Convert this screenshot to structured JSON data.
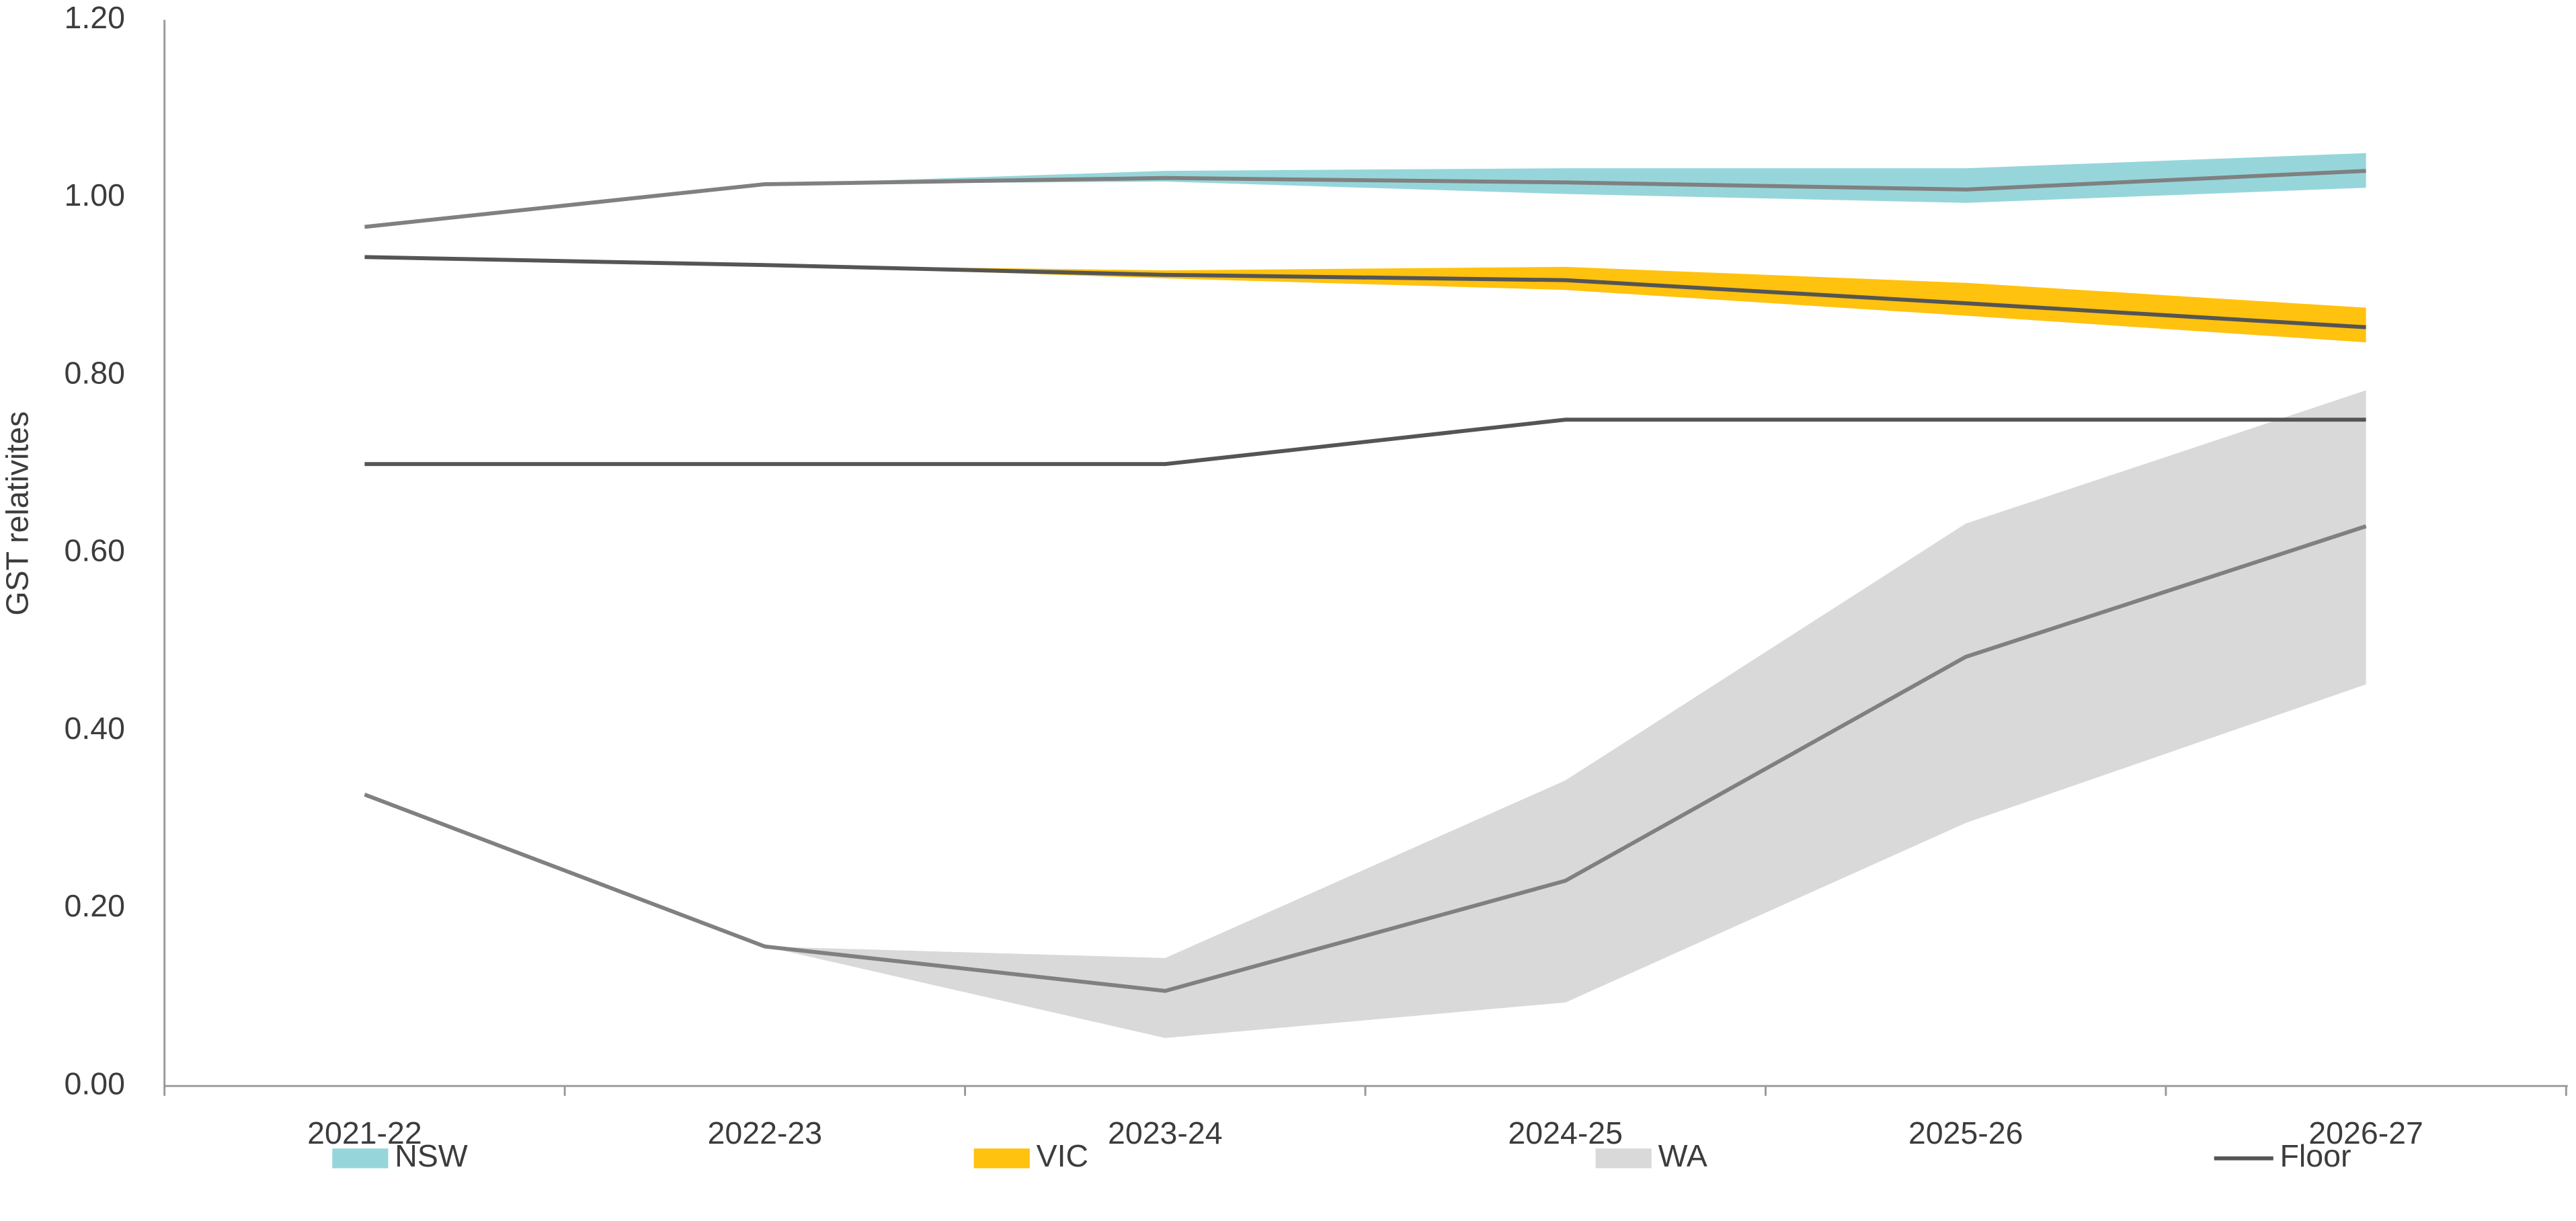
{
  "chart_data": {
    "type": "line",
    "y_label": "GST relativites",
    "categories": [
      "2021-22",
      "2022-23",
      "2023-24",
      "2024-25",
      "2025-26",
      "2026-27"
    ],
    "ylim": [
      0,
      1.2
    ],
    "yticks": [
      {
        "value": 0,
        "label": "0.00"
      },
      {
        "value": 0.2,
        "label": "0.20"
      },
      {
        "value": 0.4,
        "label": "0.40"
      },
      {
        "value": 0.6,
        "label": "0.60"
      },
      {
        "value": 0.8,
        "label": "0.80"
      },
      {
        "value": 1,
        "label": "1.00"
      },
      {
        "value": 1.2,
        "label": "1.20"
      }
    ],
    "series": [
      {
        "name": "NSW",
        "color": "#96d6da",
        "line_color": "#808080",
        "values": [
          0.967,
          1.015,
          1.022,
          1.017,
          1.009,
          1.03
        ],
        "lower": [
          null,
          1.015,
          1.018,
          1.004,
          0.994,
          1.011
        ],
        "upper": [
          null,
          1.015,
          1.03,
          1.033,
          1.033,
          1.05
        ]
      },
      {
        "name": "VIC",
        "color": "#ffc20e",
        "line_color": "#555555",
        "values": [
          0.933,
          0.924,
          0.913,
          0.907,
          0.881,
          0.854
        ],
        "lower": [
          null,
          0.924,
          0.909,
          0.896,
          0.867,
          0.837
        ],
        "upper": [
          null,
          0.924,
          0.918,
          0.922,
          0.904,
          0.876
        ]
      },
      {
        "name": "WA",
        "color": "#d9d9d9",
        "line_color": "#808080",
        "values": [
          0.328,
          0.157,
          0.107,
          0.231,
          0.483,
          0.63
        ],
        "lower": [
          null,
          0.157,
          0.054,
          0.094,
          0.296,
          0.452
        ],
        "upper": [
          null,
          0.157,
          0.144,
          0.344,
          0.633,
          0.783
        ]
      },
      {
        "name": "Floor",
        "color": "#555555",
        "values": [
          0.7,
          0.7,
          0.7,
          0.75,
          0.75,
          0.75
        ]
      }
    ]
  }
}
